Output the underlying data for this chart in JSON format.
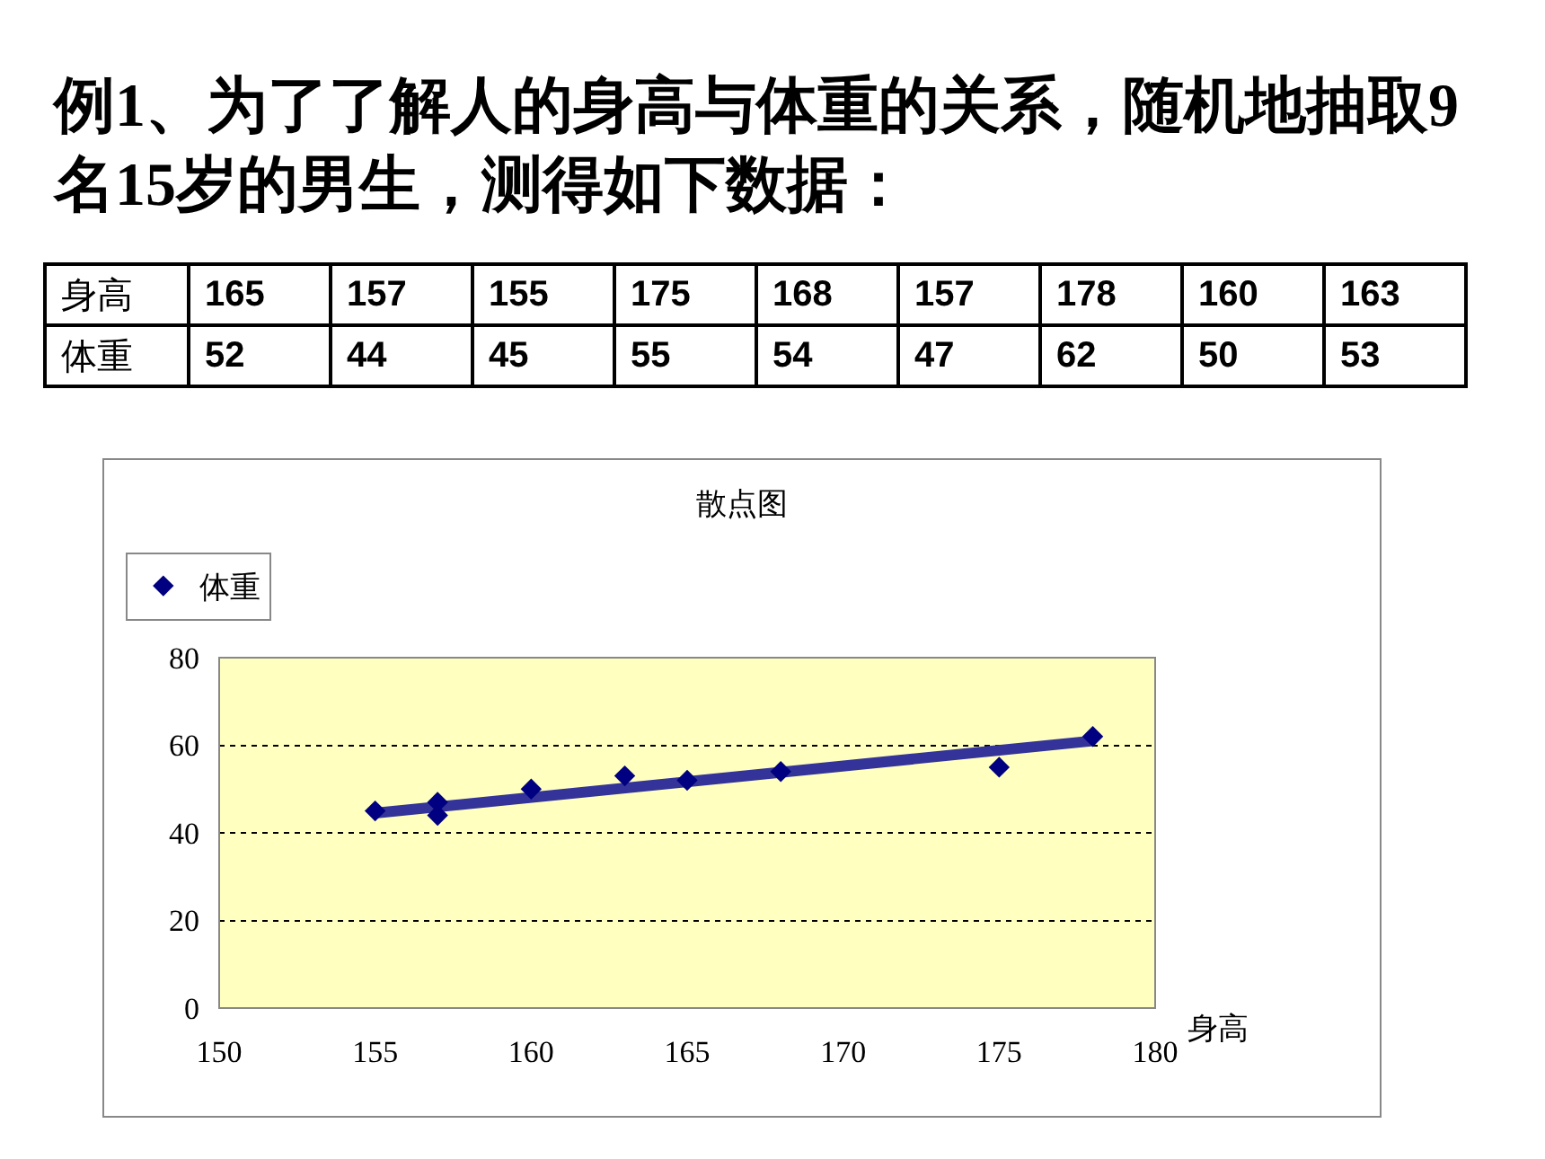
{
  "chart_data": [
    {
      "type": "other",
      "title": "例1、为了了解人的身高与体重的关系，随机地抽取9名15岁的男生，测得如下数据：",
      "annotations": [
        "身高",
        "165",
        "157",
        "155",
        "175",
        "168",
        "157",
        "178",
        "160",
        "163",
        "体重",
        "52",
        "44",
        "45",
        "55",
        "54",
        "47",
        "62",
        "50",
        "53"
      ]
    },
    {
      "type": "scatter",
      "title": "散点图",
      "xlabel": "身高",
      "x": [
        165,
        157,
        155,
        175,
        168,
        157,
        178,
        160,
        163
      ],
      "series": [
        {
          "name": "体重",
          "type": "scatter",
          "color": "#000080",
          "values": [
            52,
            44,
            45,
            55,
            54,
            47,
            62,
            50,
            53
          ]
        },
        {
          "type": "line",
          "color": "#333399",
          "x": [
            155,
            178
          ],
          "values": [
            44.5,
            61
          ],
          "marker": "none"
        }
      ],
      "xlim": [
        150,
        180
      ],
      "xticks": [
        150,
        155,
        160,
        165,
        170,
        175,
        180
      ],
      "ylim": [
        0,
        80
      ],
      "yticks": [
        0,
        20,
        40,
        60,
        80
      ],
      "grid": "y",
      "legend": "top left",
      "marker": "diamond",
      "line_style": "solid"
    }
  ]
}
